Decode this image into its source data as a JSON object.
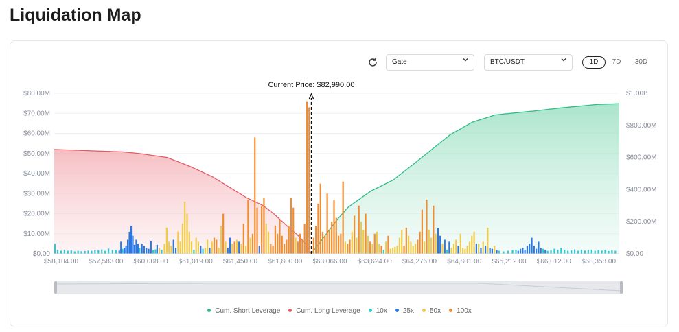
{
  "page": {
    "title": "Liquidation Map"
  },
  "controls": {
    "exchange_select": "Gate",
    "pair_select": "BTC/USDT",
    "ranges": [
      "1D",
      "7D",
      "30D"
    ],
    "active_range": "1D"
  },
  "colors": {
    "short": "#2ebd85",
    "long": "#e45b66",
    "x10": "#29c9d6",
    "x25": "#2b78e4",
    "x50": "#f0cb4a",
    "x100": "#ef8d32"
  },
  "chart_data": {
    "type": "bar",
    "current_price_label": "Current Price: $82,990.00",
    "left_ticks": [
      "$0.00",
      "$10.00M",
      "$20.00M",
      "$30.00M",
      "$40.00M",
      "$50.00M",
      "$60.00M",
      "$70.00M",
      "$80.00M"
    ],
    "right_ticks": [
      "$0.00",
      "$200.00M",
      "$400.00M",
      "$600.00M",
      "$800.00M",
      "$1.00B"
    ],
    "x_ticks": [
      "$58,104.00",
      "$57,583.00",
      "$60,008.00",
      "$61,019.00",
      "$61,450.00",
      "$61,800.00",
      "$63,066.00",
      "$63,624.00",
      "$64,276.00",
      "$64,801.00",
      "$65,212.00",
      "$66,012.00",
      "$68,358.00"
    ],
    "ylim_left": [
      0,
      80
    ],
    "ylim_right": [
      0,
      1000
    ],
    "legend": [
      "Cum. Short Leverage",
      "Cum. Long Leverage",
      "10x",
      "25x",
      "50x",
      "100x"
    ],
    "cum_long": [
      [
        0,
        650
      ],
      [
        0.08,
        640
      ],
      [
        0.12,
        635
      ],
      [
        0.15,
        625
      ],
      [
        0.2,
        600
      ],
      [
        0.24,
        545
      ],
      [
        0.28,
        480
      ],
      [
        0.31,
        415
      ],
      [
        0.34,
        350
      ],
      [
        0.37,
        300
      ],
      [
        0.39,
        245
      ],
      [
        0.41,
        180
      ],
      [
        0.43,
        120
      ],
      [
        0.445,
        65
      ],
      [
        0.455,
        0
      ]
    ],
    "cum_short": [
      [
        0.455,
        0
      ],
      [
        0.47,
        70
      ],
      [
        0.5,
        210
      ],
      [
        0.52,
        290
      ],
      [
        0.56,
        390
      ],
      [
        0.6,
        460
      ],
      [
        0.64,
        570
      ],
      [
        0.7,
        740
      ],
      [
        0.74,
        820
      ],
      [
        0.78,
        865
      ],
      [
        0.85,
        890
      ],
      [
        0.9,
        910
      ],
      [
        0.96,
        930
      ],
      [
        1.0,
        935
      ]
    ],
    "current_price_pos": 0.455,
    "bars": [
      {
        "x": 0.001,
        "v": 5,
        "lev": "x10"
      },
      {
        "x": 0.006,
        "v": 2,
        "lev": "x10"
      },
      {
        "x": 0.012,
        "v": 1.5,
        "lev": "x10"
      },
      {
        "x": 0.018,
        "v": 2,
        "lev": "x10"
      },
      {
        "x": 0.024,
        "v": 1.5,
        "lev": "x10"
      },
      {
        "x": 0.03,
        "v": 1.8,
        "lev": "x10"
      },
      {
        "x": 0.036,
        "v": 1.2,
        "lev": "x10"
      },
      {
        "x": 0.042,
        "v": 1.5,
        "lev": "x10"
      },
      {
        "x": 0.048,
        "v": 1.3,
        "lev": "x10"
      },
      {
        "x": 0.054,
        "v": 1.4,
        "lev": "x10"
      },
      {
        "x": 0.06,
        "v": 1.6,
        "lev": "x10"
      },
      {
        "x": 0.066,
        "v": 1.5,
        "lev": "x10"
      },
      {
        "x": 0.072,
        "v": 2,
        "lev": "x10"
      },
      {
        "x": 0.078,
        "v": 1.7,
        "lev": "x10"
      },
      {
        "x": 0.084,
        "v": 2.2,
        "lev": "x10"
      },
      {
        "x": 0.09,
        "v": 1.5,
        "lev": "x10"
      },
      {
        "x": 0.096,
        "v": 2.6,
        "lev": "x10"
      },
      {
        "x": 0.103,
        "v": 1.9,
        "lev": "x10"
      },
      {
        "x": 0.109,
        "v": 2,
        "lev": "x10"
      },
      {
        "x": 0.115,
        "v": 1.6,
        "lev": "x25"
      },
      {
        "x": 0.118,
        "v": 6,
        "lev": "x25"
      },
      {
        "x": 0.121,
        "v": 2.5,
        "lev": "x10"
      },
      {
        "x": 0.124,
        "v": 3,
        "lev": "x25"
      },
      {
        "x": 0.127,
        "v": 4,
        "lev": "x25"
      },
      {
        "x": 0.13,
        "v": 7,
        "lev": "x25"
      },
      {
        "x": 0.133,
        "v": 11,
        "lev": "x25"
      },
      {
        "x": 0.136,
        "v": 14,
        "lev": "x25"
      },
      {
        "x": 0.139,
        "v": 9,
        "lev": "x25"
      },
      {
        "x": 0.142,
        "v": 4.5,
        "lev": "x25"
      },
      {
        "x": 0.145,
        "v": 7,
        "lev": "x25"
      },
      {
        "x": 0.148,
        "v": 5,
        "lev": "x25"
      },
      {
        "x": 0.151,
        "v": 3,
        "lev": "x10"
      },
      {
        "x": 0.155,
        "v": 5,
        "lev": "x25"
      },
      {
        "x": 0.159,
        "v": 4,
        "lev": "x25"
      },
      {
        "x": 0.163,
        "v": 3,
        "lev": "x25"
      },
      {
        "x": 0.167,
        "v": 2.5,
        "lev": "x25"
      },
      {
        "x": 0.171,
        "v": 6.5,
        "lev": "x25"
      },
      {
        "x": 0.175,
        "v": 2,
        "lev": "x10"
      },
      {
        "x": 0.179,
        "v": 2.2,
        "lev": "x10"
      },
      {
        "x": 0.182,
        "v": 4.5,
        "lev": "x25"
      },
      {
        "x": 0.186,
        "v": 3,
        "lev": "x50"
      },
      {
        "x": 0.19,
        "v": 2,
        "lev": "x10"
      },
      {
        "x": 0.195,
        "v": 5,
        "lev": "x50"
      },
      {
        "x": 0.199,
        "v": 13,
        "lev": "x50"
      },
      {
        "x": 0.203,
        "v": 6,
        "lev": "x50"
      },
      {
        "x": 0.207,
        "v": 4,
        "lev": "x50"
      },
      {
        "x": 0.211,
        "v": 7,
        "lev": "x25"
      },
      {
        "x": 0.215,
        "v": 3,
        "lev": "x25"
      },
      {
        "x": 0.219,
        "v": 11,
        "lev": "x50"
      },
      {
        "x": 0.223,
        "v": 6,
        "lev": "x50"
      },
      {
        "x": 0.227,
        "v": 15,
        "lev": "x50"
      },
      {
        "x": 0.231,
        "v": 26,
        "lev": "x50"
      },
      {
        "x": 0.235,
        "v": 20,
        "lev": "x50"
      },
      {
        "x": 0.239,
        "v": 11,
        "lev": "x50"
      },
      {
        "x": 0.243,
        "v": 6,
        "lev": "x50"
      },
      {
        "x": 0.247,
        "v": 2,
        "lev": "x10"
      },
      {
        "x": 0.251,
        "v": 8,
        "lev": "x50"
      },
      {
        "x": 0.255,
        "v": 6,
        "lev": "x50"
      },
      {
        "x": 0.259,
        "v": 4,
        "lev": "x25"
      },
      {
        "x": 0.263,
        "v": 2.5,
        "lev": "x10"
      },
      {
        "x": 0.267,
        "v": 3,
        "lev": "x50"
      },
      {
        "x": 0.271,
        "v": 7,
        "lev": "x50"
      },
      {
        "x": 0.275,
        "v": 3,
        "lev": "x25"
      },
      {
        "x": 0.279,
        "v": 6,
        "lev": "x50"
      },
      {
        "x": 0.283,
        "v": 8,
        "lev": "x100"
      },
      {
        "x": 0.287,
        "v": 7,
        "lev": "x100"
      },
      {
        "x": 0.291,
        "v": 3,
        "lev": "x50"
      },
      {
        "x": 0.295,
        "v": 14,
        "lev": "x50"
      },
      {
        "x": 0.299,
        "v": 20,
        "lev": "x100"
      },
      {
        "x": 0.303,
        "v": 6,
        "lev": "x50"
      },
      {
        "x": 0.307,
        "v": 3,
        "lev": "x25"
      },
      {
        "x": 0.311,
        "v": 8,
        "lev": "x25"
      },
      {
        "x": 0.315,
        "v": 5,
        "lev": "x50"
      },
      {
        "x": 0.319,
        "v": 6,
        "lev": "x100"
      },
      {
        "x": 0.323,
        "v": 7,
        "lev": "x50"
      },
      {
        "x": 0.327,
        "v": 6,
        "lev": "x25"
      },
      {
        "x": 0.331,
        "v": 5,
        "lev": "x50"
      },
      {
        "x": 0.335,
        "v": 15,
        "lev": "x100"
      },
      {
        "x": 0.339,
        "v": 4,
        "lev": "x50"
      },
      {
        "x": 0.343,
        "v": 27,
        "lev": "x100"
      },
      {
        "x": 0.347,
        "v": 8,
        "lev": "x50"
      },
      {
        "x": 0.351,
        "v": 10,
        "lev": "x100"
      },
      {
        "x": 0.355,
        "v": 58,
        "lev": "x100"
      },
      {
        "x": 0.359,
        "v": 23,
        "lev": "x100"
      },
      {
        "x": 0.363,
        "v": 4,
        "lev": "x25"
      },
      {
        "x": 0.367,
        "v": 24,
        "lev": "x100"
      },
      {
        "x": 0.371,
        "v": 28,
        "lev": "x100"
      },
      {
        "x": 0.375,
        "v": 15,
        "lev": "x50"
      },
      {
        "x": 0.379,
        "v": 11,
        "lev": "x50"
      },
      {
        "x": 0.383,
        "v": 5,
        "lev": "x100"
      },
      {
        "x": 0.387,
        "v": 4,
        "lev": "x100"
      },
      {
        "x": 0.391,
        "v": 14,
        "lev": "x100"
      },
      {
        "x": 0.395,
        "v": 10,
        "lev": "x100"
      },
      {
        "x": 0.399,
        "v": 17,
        "lev": "x100"
      },
      {
        "x": 0.403,
        "v": 9,
        "lev": "x100"
      },
      {
        "x": 0.407,
        "v": 5,
        "lev": "x100"
      },
      {
        "x": 0.411,
        "v": 7,
        "lev": "x100"
      },
      {
        "x": 0.415,
        "v": 14,
        "lev": "x100"
      },
      {
        "x": 0.419,
        "v": 28,
        "lev": "x100"
      },
      {
        "x": 0.423,
        "v": 23,
        "lev": "x100"
      },
      {
        "x": 0.427,
        "v": 8,
        "lev": "x50"
      },
      {
        "x": 0.431,
        "v": 6,
        "lev": "x100"
      },
      {
        "x": 0.435,
        "v": 10,
        "lev": "x100"
      },
      {
        "x": 0.439,
        "v": 7,
        "lev": "x100"
      },
      {
        "x": 0.443,
        "v": 15,
        "lev": "x100"
      },
      {
        "x": 0.447,
        "v": 76,
        "lev": "x100"
      },
      {
        "x": 0.451,
        "v": 73,
        "lev": "x100"
      },
      {
        "x": 0.459,
        "v": 8,
        "lev": "x100"
      },
      {
        "x": 0.463,
        "v": 14,
        "lev": "x100"
      },
      {
        "x": 0.467,
        "v": 25,
        "lev": "x100"
      },
      {
        "x": 0.471,
        "v": 35,
        "lev": "x100"
      },
      {
        "x": 0.475,
        "v": 11,
        "lev": "x100"
      },
      {
        "x": 0.479,
        "v": 9,
        "lev": "x100"
      },
      {
        "x": 0.483,
        "v": 30,
        "lev": "x100"
      },
      {
        "x": 0.487,
        "v": 12,
        "lev": "x100"
      },
      {
        "x": 0.491,
        "v": 16,
        "lev": "x100"
      },
      {
        "x": 0.495,
        "v": 27,
        "lev": "x100"
      },
      {
        "x": 0.499,
        "v": 18,
        "lev": "x100"
      },
      {
        "x": 0.503,
        "v": 9,
        "lev": "x100"
      },
      {
        "x": 0.507,
        "v": 10,
        "lev": "x100"
      },
      {
        "x": 0.511,
        "v": 36,
        "lev": "x100"
      },
      {
        "x": 0.515,
        "v": 6,
        "lev": "x50"
      },
      {
        "x": 0.519,
        "v": 5,
        "lev": "x100"
      },
      {
        "x": 0.523,
        "v": 7,
        "lev": "x100"
      },
      {
        "x": 0.527,
        "v": 11,
        "lev": "x50"
      },
      {
        "x": 0.531,
        "v": 19,
        "lev": "x100"
      },
      {
        "x": 0.535,
        "v": 8,
        "lev": "x50"
      },
      {
        "x": 0.539,
        "v": 24,
        "lev": "x100"
      },
      {
        "x": 0.543,
        "v": 16,
        "lev": "x50"
      },
      {
        "x": 0.547,
        "v": 12,
        "lev": "x50"
      },
      {
        "x": 0.551,
        "v": 20,
        "lev": "x100"
      },
      {
        "x": 0.555,
        "v": 9,
        "lev": "x50"
      },
      {
        "x": 0.559,
        "v": 6,
        "lev": "x100"
      },
      {
        "x": 0.563,
        "v": 5,
        "lev": "x50"
      },
      {
        "x": 0.567,
        "v": 10,
        "lev": "x100"
      },
      {
        "x": 0.571,
        "v": 11,
        "lev": "x50"
      },
      {
        "x": 0.575,
        "v": 5,
        "lev": "x50"
      },
      {
        "x": 0.579,
        "v": 4,
        "lev": "x100"
      },
      {
        "x": 0.583,
        "v": 2,
        "lev": "x10"
      },
      {
        "x": 0.587,
        "v": 6,
        "lev": "x50"
      },
      {
        "x": 0.591,
        "v": 9,
        "lev": "x100"
      },
      {
        "x": 0.595,
        "v": 2.5,
        "lev": "x50"
      },
      {
        "x": 0.599,
        "v": 3,
        "lev": "x50"
      },
      {
        "x": 0.603,
        "v": 3.5,
        "lev": "x50"
      },
      {
        "x": 0.607,
        "v": 4,
        "lev": "x50"
      },
      {
        "x": 0.611,
        "v": 8,
        "lev": "x50"
      },
      {
        "x": 0.615,
        "v": 12,
        "lev": "x50"
      },
      {
        "x": 0.619,
        "v": 4,
        "lev": "x100"
      },
      {
        "x": 0.623,
        "v": 13,
        "lev": "x100"
      },
      {
        "x": 0.627,
        "v": 9,
        "lev": "x50"
      },
      {
        "x": 0.631,
        "v": 6,
        "lev": "x50"
      },
      {
        "x": 0.635,
        "v": 4,
        "lev": "x50"
      },
      {
        "x": 0.639,
        "v": 5,
        "lev": "x50"
      },
      {
        "x": 0.643,
        "v": 7,
        "lev": "x100"
      },
      {
        "x": 0.647,
        "v": 11,
        "lev": "x100"
      },
      {
        "x": 0.651,
        "v": 22,
        "lev": "x100"
      },
      {
        "x": 0.655,
        "v": 6,
        "lev": "x50"
      },
      {
        "x": 0.659,
        "v": 27,
        "lev": "x100"
      },
      {
        "x": 0.663,
        "v": 12,
        "lev": "x50"
      },
      {
        "x": 0.667,
        "v": 8,
        "lev": "x50"
      },
      {
        "x": 0.671,
        "v": 24,
        "lev": "x100"
      },
      {
        "x": 0.675,
        "v": 10,
        "lev": "x50"
      },
      {
        "x": 0.679,
        "v": 13,
        "lev": "x25"
      },
      {
        "x": 0.683,
        "v": 9,
        "lev": "x25"
      },
      {
        "x": 0.687,
        "v": 5,
        "lev": "x50"
      },
      {
        "x": 0.691,
        "v": 7,
        "lev": "x25"
      },
      {
        "x": 0.695,
        "v": 2,
        "lev": "x10"
      },
      {
        "x": 0.699,
        "v": 6,
        "lev": "x25"
      },
      {
        "x": 0.703,
        "v": 3,
        "lev": "x50"
      },
      {
        "x": 0.707,
        "v": 5,
        "lev": "x50"
      },
      {
        "x": 0.711,
        "v": 7,
        "lev": "x50"
      },
      {
        "x": 0.715,
        "v": 4,
        "lev": "x25"
      },
      {
        "x": 0.719,
        "v": 10,
        "lev": "x50"
      },
      {
        "x": 0.723,
        "v": 3,
        "lev": "x50"
      },
      {
        "x": 0.727,
        "v": 2.5,
        "lev": "x50"
      },
      {
        "x": 0.731,
        "v": 4,
        "lev": "x50"
      },
      {
        "x": 0.735,
        "v": 6,
        "lev": "x50"
      },
      {
        "x": 0.739,
        "v": 9,
        "lev": "x50"
      },
      {
        "x": 0.743,
        "v": 11,
        "lev": "x50"
      },
      {
        "x": 0.747,
        "v": 5,
        "lev": "x25"
      },
      {
        "x": 0.751,
        "v": 5,
        "lev": "x50"
      },
      {
        "x": 0.755,
        "v": 3,
        "lev": "x25"
      },
      {
        "x": 0.759,
        "v": 6,
        "lev": "x50"
      },
      {
        "x": 0.763,
        "v": 4,
        "lev": "x25"
      },
      {
        "x": 0.767,
        "v": 13,
        "lev": "x50"
      },
      {
        "x": 0.771,
        "v": 3,
        "lev": "x25"
      },
      {
        "x": 0.775,
        "v": 2.5,
        "lev": "x25"
      },
      {
        "x": 0.779,
        "v": 4,
        "lev": "x50"
      },
      {
        "x": 0.783,
        "v": 2,
        "lev": "x25"
      },
      {
        "x": 0.787,
        "v": 1.5,
        "lev": "x10"
      },
      {
        "x": 0.795,
        "v": 1.2,
        "lev": "x10"
      },
      {
        "x": 0.803,
        "v": 1.5,
        "lev": "x10"
      },
      {
        "x": 0.811,
        "v": 1.8,
        "lev": "x10"
      },
      {
        "x": 0.817,
        "v": 2,
        "lev": "x10"
      },
      {
        "x": 0.821,
        "v": 1.5,
        "lev": "x25"
      },
      {
        "x": 0.825,
        "v": 2.5,
        "lev": "x25"
      },
      {
        "x": 0.829,
        "v": 3,
        "lev": "x25"
      },
      {
        "x": 0.833,
        "v": 2,
        "lev": "x25"
      },
      {
        "x": 0.837,
        "v": 4,
        "lev": "x25"
      },
      {
        "x": 0.841,
        "v": 5,
        "lev": "x25"
      },
      {
        "x": 0.845,
        "v": 8,
        "lev": "x25"
      },
      {
        "x": 0.849,
        "v": 4,
        "lev": "x25"
      },
      {
        "x": 0.853,
        "v": 2.5,
        "lev": "x25"
      },
      {
        "x": 0.857,
        "v": 6,
        "lev": "x25"
      },
      {
        "x": 0.861,
        "v": 3,
        "lev": "x25"
      },
      {
        "x": 0.865,
        "v": 2.5,
        "lev": "x10"
      },
      {
        "x": 0.869,
        "v": 2,
        "lev": "x25"
      },
      {
        "x": 0.873,
        "v": 1.5,
        "lev": "x10"
      },
      {
        "x": 0.879,
        "v": 1.8,
        "lev": "x10"
      },
      {
        "x": 0.885,
        "v": 2.5,
        "lev": "x10"
      },
      {
        "x": 0.891,
        "v": 2,
        "lev": "x10"
      },
      {
        "x": 0.897,
        "v": 3,
        "lev": "x10"
      },
      {
        "x": 0.903,
        "v": 2,
        "lev": "x10"
      },
      {
        "x": 0.909,
        "v": 1.5,
        "lev": "x10"
      },
      {
        "x": 0.915,
        "v": 1.7,
        "lev": "x10"
      },
      {
        "x": 0.921,
        "v": 2.2,
        "lev": "x10"
      },
      {
        "x": 0.927,
        "v": 1.5,
        "lev": "x10"
      },
      {
        "x": 0.933,
        "v": 2,
        "lev": "x10"
      },
      {
        "x": 0.939,
        "v": 1.6,
        "lev": "x10"
      },
      {
        "x": 0.945,
        "v": 1.8,
        "lev": "x10"
      },
      {
        "x": 0.951,
        "v": 2.1,
        "lev": "x10"
      },
      {
        "x": 0.957,
        "v": 1.5,
        "lev": "x10"
      },
      {
        "x": 0.963,
        "v": 1.9,
        "lev": "x10"
      },
      {
        "x": 0.969,
        "v": 1.6,
        "lev": "x10"
      },
      {
        "x": 0.975,
        "v": 2,
        "lev": "x10"
      },
      {
        "x": 0.981,
        "v": 1.4,
        "lev": "x10"
      },
      {
        "x": 0.987,
        "v": 1.8,
        "lev": "x10"
      },
      {
        "x": 0.993,
        "v": 1.5,
        "lev": "x10"
      }
    ]
  }
}
